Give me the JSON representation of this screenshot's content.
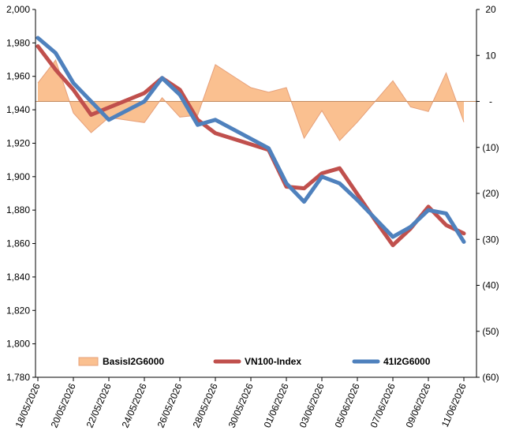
{
  "chart_data": {
    "type": "line",
    "title": "",
    "xlabel": "",
    "ylabel": "",
    "x": [
      "18/05/2026",
      "19/05/2026",
      "20/05/2026",
      "21/05/2026",
      "22/05/2026",
      "23/05/2026",
      "24/05/2026",
      "25/05/2026",
      "26/05/2026",
      "27/05/2026",
      "28/05/2026",
      "29/05/2026",
      "30/05/2026",
      "31/05/2026",
      "01/06/2026",
      "02/06/2026",
      "03/06/2026",
      "04/06/2026",
      "05/06/2026",
      "06/06/2026",
      "07/06/2026",
      "08/06/2026",
      "09/06/2026",
      "10/06/2026",
      "11/06/2026",
      "12/06/2026"
    ],
    "x_tick_labels": [
      "18/05/2026",
      "20/05/2026",
      "22/05/2026",
      "24/05/2026",
      "26/05/2026",
      "28/05/2026",
      "30/05/2026",
      "01/06/2026",
      "03/06/2026",
      "05/06/2026",
      "07/06/2026",
      "09/06/2026",
      "11/06/2026"
    ],
    "y_left": {
      "range": [
        1780,
        2000
      ],
      "tick_labels": [
        "2,000",
        "1,980",
        "1,960",
        "1,940",
        "1,920",
        "1,900",
        "1,880",
        "1,860",
        "1,840",
        "1,820",
        "1,800",
        "1,780"
      ]
    },
    "y_right": {
      "range": [
        -60,
        20
      ],
      "tick_labels": [
        "20",
        "10",
        "-",
        "(10)",
        "(20)",
        "(30)",
        "(40)",
        "(50)",
        "(60)"
      ]
    },
    "grid": false,
    "legend_position": "bottom-inside",
    "series": [
      {
        "name": "BasisI2G6000",
        "type": "area",
        "axis": "right",
        "color": "#FAC090",
        "line_color": "#E6A07A",
        "points": [
          [
            "18/05/2026",
            4
          ],
          [
            "19/05/2026",
            9
          ],
          [
            "20/05/2026",
            -2.5
          ],
          [
            "21/05/2026",
            -6.8
          ],
          [
            "22/05/2026",
            -3.5
          ],
          [
            "24/05/2026",
            -4.6
          ],
          [
            "25/05/2026",
            0.8
          ],
          [
            "26/05/2026",
            -3.4
          ],
          [
            "27/05/2026",
            -3
          ],
          [
            "28/05/2026",
            8
          ],
          [
            "29/05/2026",
            5.5
          ],
          [
            "30/05/2026",
            3
          ],
          [
            "31/05/2026",
            2
          ],
          [
            "01/06/2026",
            3
          ],
          [
            "02/06/2026",
            -8
          ],
          [
            "03/06/2026",
            -2
          ],
          [
            "04/06/2026",
            -8.5
          ],
          [
            "05/06/2026",
            -4.5
          ],
          [
            "06/06/2026",
            0
          ],
          [
            "07/06/2026",
            4.5
          ],
          [
            "08/06/2026",
            -1.2
          ],
          [
            "09/06/2026",
            -2.2
          ],
          [
            "10/06/2026",
            6.2
          ],
          [
            "11/06/2026",
            -4.5
          ]
        ]
      },
      {
        "name": "VN100-Index",
        "type": "line",
        "axis": "left",
        "color": "#C0504D",
        "points": [
          [
            "18/05/2026",
            1978
          ],
          [
            "19/05/2026",
            1964
          ],
          [
            "20/05/2026",
            1952
          ],
          [
            "21/05/2026",
            1937
          ],
          [
            "24/05/2026",
            1950
          ],
          [
            "25/05/2026",
            1959
          ],
          [
            "26/05/2026",
            1952
          ],
          [
            "27/05/2026",
            1934
          ],
          [
            "28/05/2026",
            1926
          ],
          [
            "31/05/2026",
            1916
          ],
          [
            "01/06/2026",
            1894
          ],
          [
            "02/06/2026",
            1893
          ],
          [
            "03/06/2026",
            1902
          ],
          [
            "04/06/2026",
            1905
          ],
          [
            "06/06/2026",
            1874
          ],
          [
            "07/06/2026",
            1859
          ],
          [
            "08/06/2026",
            1869
          ],
          [
            "09/06/2026",
            1882
          ],
          [
            "10/06/2026",
            1871
          ],
          [
            "11/06/2026",
            1866
          ]
        ]
      },
      {
        "name": "41I2G6000",
        "type": "line",
        "axis": "left",
        "color": "#4F81BD",
        "points": [
          [
            "18/05/2026",
            1983
          ],
          [
            "19/05/2026",
            1974
          ],
          [
            "20/05/2026",
            1956
          ],
          [
            "21/05/2026",
            1945
          ],
          [
            "22/05/2026",
            1934
          ],
          [
            "24/05/2026",
            1945
          ],
          [
            "25/05/2026",
            1959
          ],
          [
            "26/05/2026",
            1949
          ],
          [
            "27/05/2026",
            1931
          ],
          [
            "28/05/2026",
            1934
          ],
          [
            "31/05/2026",
            1917
          ],
          [
            "01/06/2026",
            1896
          ],
          [
            "02/06/2026",
            1885
          ],
          [
            "03/06/2026",
            1900
          ],
          [
            "04/06/2026",
            1896
          ],
          [
            "05/06/2026",
            1886
          ],
          [
            "06/06/2026",
            1875
          ],
          [
            "07/06/2026",
            1864
          ],
          [
            "08/06/2026",
            1870
          ],
          [
            "09/06/2026",
            1880
          ],
          [
            "10/06/2026",
            1878
          ],
          [
            "11/06/2026",
            1861
          ]
        ]
      }
    ]
  }
}
